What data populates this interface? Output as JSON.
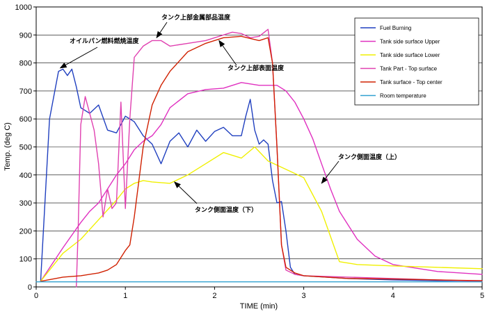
{
  "chart_data": {
    "type": "line",
    "title": "",
    "xlabel": "TIME (min)",
    "ylabel": "Temp. (deg C)",
    "xlim": [
      0,
      5
    ],
    "ylim": [
      0,
      1000
    ],
    "x_ticks": [
      "0",
      "1",
      "2",
      "3",
      "4",
      "5"
    ],
    "y_ticks": [
      "0",
      "100",
      "200",
      "300",
      "400",
      "500",
      "600",
      "700",
      "800",
      "900",
      "1000"
    ],
    "grid": "horizontal",
    "legend_position": "top-right",
    "series": [
      {
        "name": "Fuel Burning",
        "color": "#1f3fbf",
        "x": [
          0.05,
          0.15,
          0.25,
          0.3,
          0.35,
          0.4,
          0.45,
          0.5,
          0.6,
          0.7,
          0.8,
          0.9,
          1.0,
          1.1,
          1.2,
          1.3,
          1.4,
          1.5,
          1.6,
          1.7,
          1.8,
          1.9,
          2.0,
          2.1,
          2.2,
          2.3,
          2.35,
          2.4,
          2.45,
          2.5,
          2.55,
          2.6,
          2.65,
          2.7,
          2.75,
          2.8,
          2.85,
          2.9,
          3.0,
          3.5,
          4.0,
          4.5,
          5.0
        ],
        "y": [
          20,
          600,
          770,
          778,
          755,
          778,
          715,
          640,
          620,
          650,
          560,
          550,
          610,
          590,
          540,
          510,
          440,
          520,
          550,
          500,
          560,
          520,
          555,
          570,
          540,
          540,
          610,
          670,
          560,
          510,
          525,
          510,
          380,
          300,
          305,
          200,
          70,
          45,
          40,
          30,
          25,
          22,
          22
        ]
      },
      {
        "name": "Tank side surface Upper",
        "color": "#e030c0",
        "x": [
          0.05,
          0.3,
          0.5,
          0.6,
          0.7,
          0.8,
          0.9,
          1.0,
          1.1,
          1.2,
          1.3,
          1.4,
          1.5,
          1.7,
          1.9,
          2.1,
          2.3,
          2.5,
          2.7,
          2.8,
          2.9,
          3.0,
          3.1,
          3.2,
          3.3,
          3.4,
          3.6,
          3.8,
          4.0,
          4.5,
          5.0
        ],
        "y": [
          20,
          140,
          230,
          270,
          300,
          350,
          400,
          440,
          490,
          520,
          540,
          580,
          640,
          690,
          705,
          710,
          730,
          720,
          720,
          700,
          660,
          600,
          530,
          440,
          350,
          270,
          170,
          110,
          80,
          55,
          45
        ]
      },
      {
        "name": "Tank side surface Lower",
        "color": "#f0f000",
        "x": [
          0.05,
          0.3,
          0.5,
          0.7,
          0.9,
          1.0,
          1.1,
          1.2,
          1.3,
          1.5,
          1.7,
          1.9,
          2.1,
          2.3,
          2.45,
          2.6,
          2.8,
          2.9,
          3.0,
          3.1,
          3.2,
          3.3,
          3.4,
          3.6,
          4.0,
          4.5,
          5.0
        ],
        "y": [
          20,
          120,
          170,
          240,
          310,
          350,
          370,
          380,
          375,
          370,
          400,
          440,
          480,
          460,
          500,
          450,
          420,
          405,
          390,
          330,
          270,
          180,
          90,
          80,
          75,
          70,
          65
        ]
      },
      {
        "name": "Tank Part - Top surface",
        "color": "#e040b0",
        "x": [
          0.45,
          0.47,
          0.5,
          0.55,
          0.6,
          0.65,
          0.7,
          0.75,
          0.8,
          0.85,
          0.9,
          0.95,
          1.0,
          1.05,
          1.1,
          1.2,
          1.3,
          1.4,
          1.5,
          1.7,
          1.9,
          2.1,
          2.2,
          2.3,
          2.4,
          2.5,
          2.6,
          2.65,
          2.7,
          2.75,
          2.8,
          2.9,
          3.0,
          3.5,
          4.0,
          4.5,
          5.0
        ],
        "y": [
          0,
          200,
          580,
          680,
          620,
          560,
          440,
          250,
          350,
          280,
          300,
          660,
          280,
          600,
          820,
          860,
          880,
          880,
          860,
          870,
          880,
          900,
          910,
          905,
          890,
          895,
          920,
          800,
          500,
          150,
          60,
          45,
          40,
          35,
          30,
          25,
          20
        ]
      },
      {
        "name": "Tank surface - Top center",
        "color": "#d02000",
        "x": [
          0.05,
          0.3,
          0.5,
          0.7,
          0.8,
          0.9,
          1.0,
          1.05,
          1.1,
          1.2,
          1.3,
          1.4,
          1.5,
          1.7,
          1.9,
          2.1,
          2.3,
          2.5,
          2.6,
          2.65,
          2.7,
          2.75,
          2.8,
          2.9,
          3.0,
          3.5,
          4.0,
          4.5,
          5.0
        ],
        "y": [
          20,
          35,
          40,
          50,
          60,
          80,
          130,
          150,
          250,
          500,
          650,
          720,
          770,
          840,
          870,
          890,
          895,
          880,
          890,
          800,
          500,
          150,
          70,
          50,
          40,
          30,
          28,
          25,
          22
        ]
      },
      {
        "name": "Room temperature",
        "color": "#30a0d0",
        "x": [
          0,
          1,
          2,
          3,
          4,
          5
        ],
        "y": [
          18,
          18,
          18,
          18,
          18,
          18
        ]
      }
    ],
    "annotations": [
      {
        "text": "オイルパン燃料燃焼温度",
        "target_x": 0.27,
        "target_y": 782
      },
      {
        "text": "タンク上部金属部品温度",
        "target_x": 1.35,
        "target_y": 890
      },
      {
        "text": "タンク上部表面温度",
        "target_x": 2.05,
        "target_y": 880
      },
      {
        "text": "タンク側面温度（上）",
        "target_x": 3.2,
        "target_y": 370
      },
      {
        "text": "タンク側面温度（下）",
        "target_x": 1.55,
        "target_y": 375
      }
    ]
  }
}
